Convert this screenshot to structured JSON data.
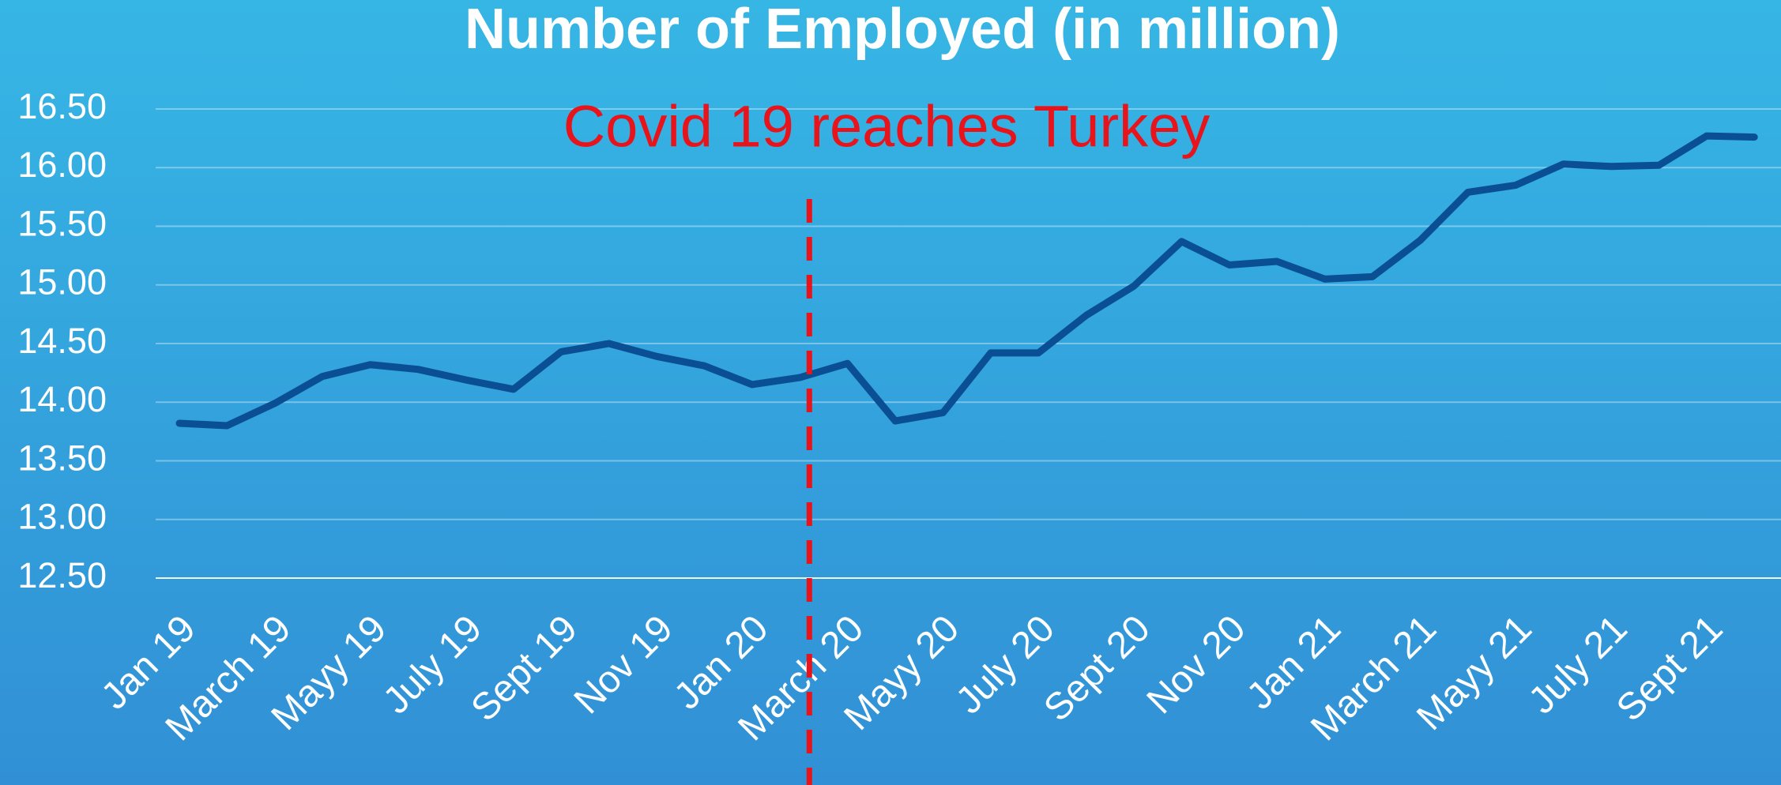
{
  "chart_data": {
    "type": "line",
    "title": "Number of Employed (in million)",
    "annotation": "Covid 19 reaches Turkey",
    "categories": [
      "Jan 19",
      null,
      "March 19",
      null,
      "Mayy 19",
      null,
      "July 19",
      null,
      "Sept 19",
      null,
      "Nov 19",
      null,
      "Jan 20",
      null,
      "March 20",
      null,
      "Mayy 20",
      null,
      "July 20",
      null,
      "Sept 20",
      null,
      "Nov 20",
      null,
      "Jan 21",
      null,
      "March 21",
      null,
      "Mayy 21",
      null,
      "July 21",
      null,
      "Sept 21",
      null
    ],
    "series": [
      {
        "color": "#0a4f94",
        "values": [
          13.82,
          13.8,
          13.99,
          14.22,
          14.32,
          14.28,
          14.19,
          14.11,
          14.43,
          14.5,
          14.39,
          14.31,
          14.15,
          14.21,
          14.33,
          13.84,
          13.91,
          14.42,
          14.42,
          14.74,
          14.99,
          15.37,
          15.17,
          15.2,
          15.05,
          15.07,
          15.38,
          15.79,
          15.85,
          16.03,
          16.01,
          16.02,
          16.27,
          16.26
        ]
      }
    ],
    "ylim": [
      12.5,
      16.5
    ],
    "yticks": [
      {
        "value": 12.5,
        "label": "12.50"
      },
      {
        "value": 13,
        "label": "13.00"
      },
      {
        "value": 13.5,
        "label": "13.50"
      },
      {
        "value": 14,
        "label": "14.00"
      },
      {
        "value": 14.5,
        "label": "14.50"
      },
      {
        "value": 15,
        "label": "15.00"
      },
      {
        "value": 15.5,
        "label": "15.50"
      },
      {
        "value": 16,
        "label": "16.00"
      },
      {
        "value": 16.5,
        "label": "16.50"
      }
    ],
    "grid": true,
    "annotation_color": "#e8141c"
  }
}
